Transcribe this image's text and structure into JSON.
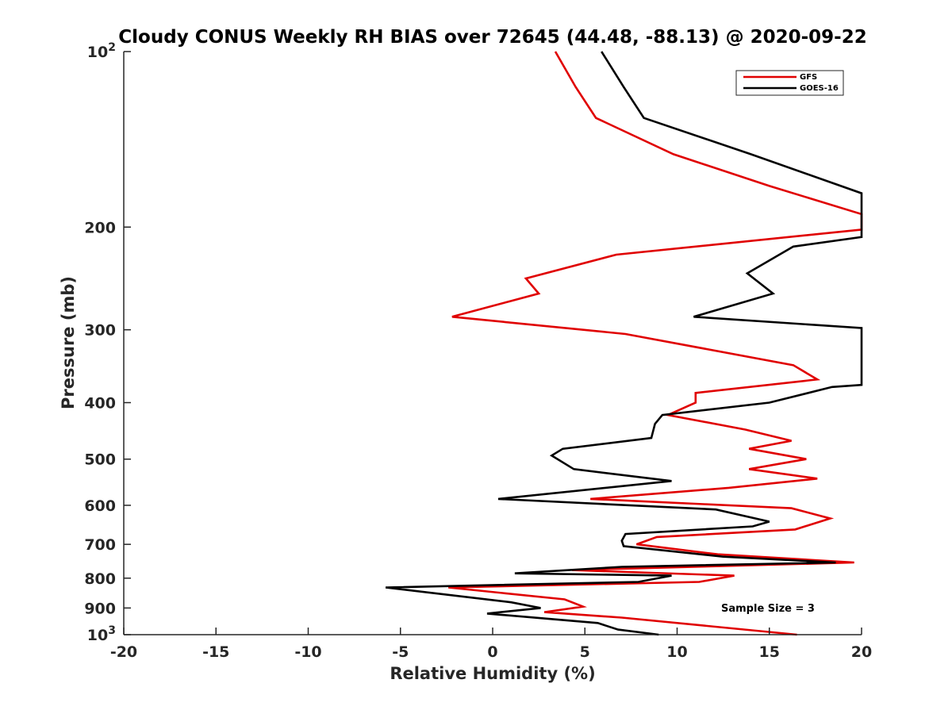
{
  "chart_data": {
    "type": "line",
    "title": "Cloudy CONUS Weekly RH BIAS over 72645 (44.48, -88.13) @ 2020-09-22",
    "xlabel": "Relative Humidity (%)",
    "ylabel": "Pressure (mb)",
    "xlim": [
      -20,
      20
    ],
    "ylim": [
      100,
      1000
    ],
    "y_scale": "log",
    "y_direction": "reversed",
    "grid": false,
    "legend_position": "top-right",
    "x_ticks": [
      -20,
      -15,
      -10,
      -5,
      0,
      5,
      10,
      15,
      20
    ],
    "x_tick_labels": [
      "-20",
      "-15",
      "-10",
      "-5",
      "0",
      "5",
      "10",
      "15",
      "20"
    ],
    "y_ticks": [
      {
        "value": 100,
        "base": "10",
        "exp": "2"
      },
      {
        "value": 200,
        "label": "200"
      },
      {
        "value": 300,
        "label": "300"
      },
      {
        "value": 400,
        "label": "400"
      },
      {
        "value": 500,
        "label": "500"
      },
      {
        "value": 600,
        "label": "600"
      },
      {
        "value": 700,
        "label": "700"
      },
      {
        "value": 800,
        "label": "800"
      },
      {
        "value": 900,
        "label": "900"
      },
      {
        "value": 1000,
        "base": "10",
        "exp": "3"
      }
    ],
    "annotation": "Sample Size = 3",
    "series": [
      {
        "name": "GFS",
        "color": "#e00000",
        "points": [
          {
            "x": 3.4,
            "y": 100
          },
          {
            "x": 4.5,
            "y": 115
          },
          {
            "x": 5.6,
            "y": 130
          },
          {
            "x": 9.8,
            "y": 150
          },
          {
            "x": 15.0,
            "y": 170
          },
          {
            "x": 20.0,
            "y": 190
          },
          {
            "x": 20.0,
            "y": 202
          },
          {
            "x": 6.7,
            "y": 223
          },
          {
            "x": 1.8,
            "y": 245
          },
          {
            "x": 2.5,
            "y": 260
          },
          {
            "x": -2.2,
            "y": 285
          },
          {
            "x": 7.2,
            "y": 305
          },
          {
            "x": 16.3,
            "y": 345
          },
          {
            "x": 17.6,
            "y": 365
          },
          {
            "x": 11.0,
            "y": 385
          },
          {
            "x": 11.0,
            "y": 400
          },
          {
            "x": 9.5,
            "y": 420
          },
          {
            "x": 13.7,
            "y": 445
          },
          {
            "x": 16.2,
            "y": 465
          },
          {
            "x": 13.9,
            "y": 480
          },
          {
            "x": 17.0,
            "y": 500
          },
          {
            "x": 13.9,
            "y": 520
          },
          {
            "x": 17.6,
            "y": 540
          },
          {
            "x": 12.8,
            "y": 560
          },
          {
            "x": 5.3,
            "y": 585
          },
          {
            "x": 16.2,
            "y": 607
          },
          {
            "x": 18.3,
            "y": 632
          },
          {
            "x": 16.4,
            "y": 660
          },
          {
            "x": 8.9,
            "y": 680
          },
          {
            "x": 7.8,
            "y": 700
          },
          {
            "x": 12.2,
            "y": 728
          },
          {
            "x": 19.6,
            "y": 752
          },
          {
            "x": 4.3,
            "y": 775
          },
          {
            "x": 13.1,
            "y": 792
          },
          {
            "x": 11.2,
            "y": 812
          },
          {
            "x": -2.4,
            "y": 830
          },
          {
            "x": 3.9,
            "y": 870
          },
          {
            "x": 4.9,
            "y": 895
          },
          {
            "x": 2.8,
            "y": 915
          },
          {
            "x": 7.0,
            "y": 935
          },
          {
            "x": 16.5,
            "y": 1000
          }
        ]
      },
      {
        "name": "GOES-16",
        "color": "#000000",
        "points": [
          {
            "x": 5.9,
            "y": 100
          },
          {
            "x": 7.1,
            "y": 115
          },
          {
            "x": 8.2,
            "y": 130
          },
          {
            "x": 14.0,
            "y": 150
          },
          {
            "x": 20.0,
            "y": 175
          },
          {
            "x": 20.0,
            "y": 208
          },
          {
            "x": 16.3,
            "y": 216
          },
          {
            "x": 13.8,
            "y": 240
          },
          {
            "x": 15.2,
            "y": 260
          },
          {
            "x": 10.9,
            "y": 285
          },
          {
            "x": 20.0,
            "y": 298
          },
          {
            "x": 20.0,
            "y": 373
          },
          {
            "x": 18.4,
            "y": 376
          },
          {
            "x": 15.0,
            "y": 400
          },
          {
            "x": 9.2,
            "y": 420
          },
          {
            "x": 8.8,
            "y": 435
          },
          {
            "x": 8.6,
            "y": 460
          },
          {
            "x": 3.8,
            "y": 480
          },
          {
            "x": 3.2,
            "y": 493
          },
          {
            "x": 4.4,
            "y": 520
          },
          {
            "x": 9.7,
            "y": 545
          },
          {
            "x": 0.3,
            "y": 585
          },
          {
            "x": 12.1,
            "y": 610
          },
          {
            "x": 15.0,
            "y": 640
          },
          {
            "x": 14.1,
            "y": 652
          },
          {
            "x": 7.2,
            "y": 672
          },
          {
            "x": 7.0,
            "y": 690
          },
          {
            "x": 7.1,
            "y": 705
          },
          {
            "x": 12.5,
            "y": 735
          },
          {
            "x": 18.6,
            "y": 752
          },
          {
            "x": 7.0,
            "y": 765
          },
          {
            "x": 1.2,
            "y": 785
          },
          {
            "x": 9.7,
            "y": 792
          },
          {
            "x": 7.9,
            "y": 812
          },
          {
            "x": -5.8,
            "y": 830
          },
          {
            "x": 1.0,
            "y": 880
          },
          {
            "x": 2.6,
            "y": 900
          },
          {
            "x": -0.3,
            "y": 920
          },
          {
            "x": 5.7,
            "y": 955
          },
          {
            "x": 6.8,
            "y": 980
          },
          {
            "x": 9.0,
            "y": 1000
          }
        ]
      }
    ]
  }
}
